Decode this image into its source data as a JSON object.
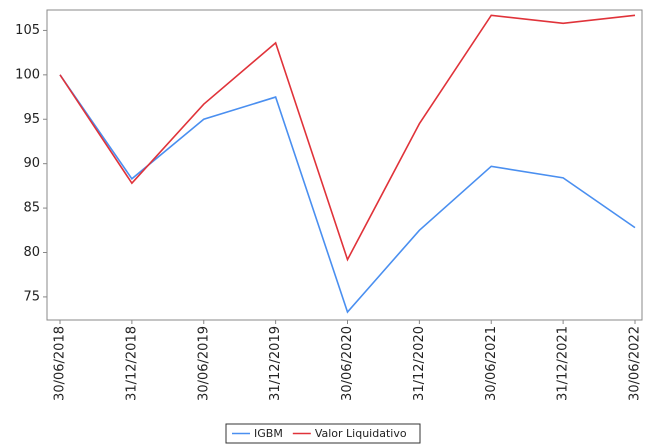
{
  "chart_data": {
    "type": "line",
    "categories": [
      "30/06/2018",
      "31/12/2018",
      "30/06/2019",
      "31/12/2019",
      "30/06/2020",
      "31/12/2020",
      "30/06/2021",
      "31/12/2021",
      "30/06/2022"
    ],
    "series": [
      {
        "name": "IGBM",
        "color": "#4a8ff0",
        "values": [
          100,
          88.3,
          95,
          97.5,
          73.3,
          82.5,
          89.7,
          88.4,
          82.8
        ]
      },
      {
        "name": "Valor Liquidativo",
        "color": "#e0333a",
        "values": [
          100,
          87.8,
          96.7,
          103.6,
          79.2,
          94.5,
          106.7,
          105.8,
          106.7
        ]
      }
    ],
    "ylim": [
      72.4,
      107.3
    ],
    "yticks": [
      75,
      80,
      85,
      90,
      95,
      100,
      105
    ],
    "grid": false
  }
}
